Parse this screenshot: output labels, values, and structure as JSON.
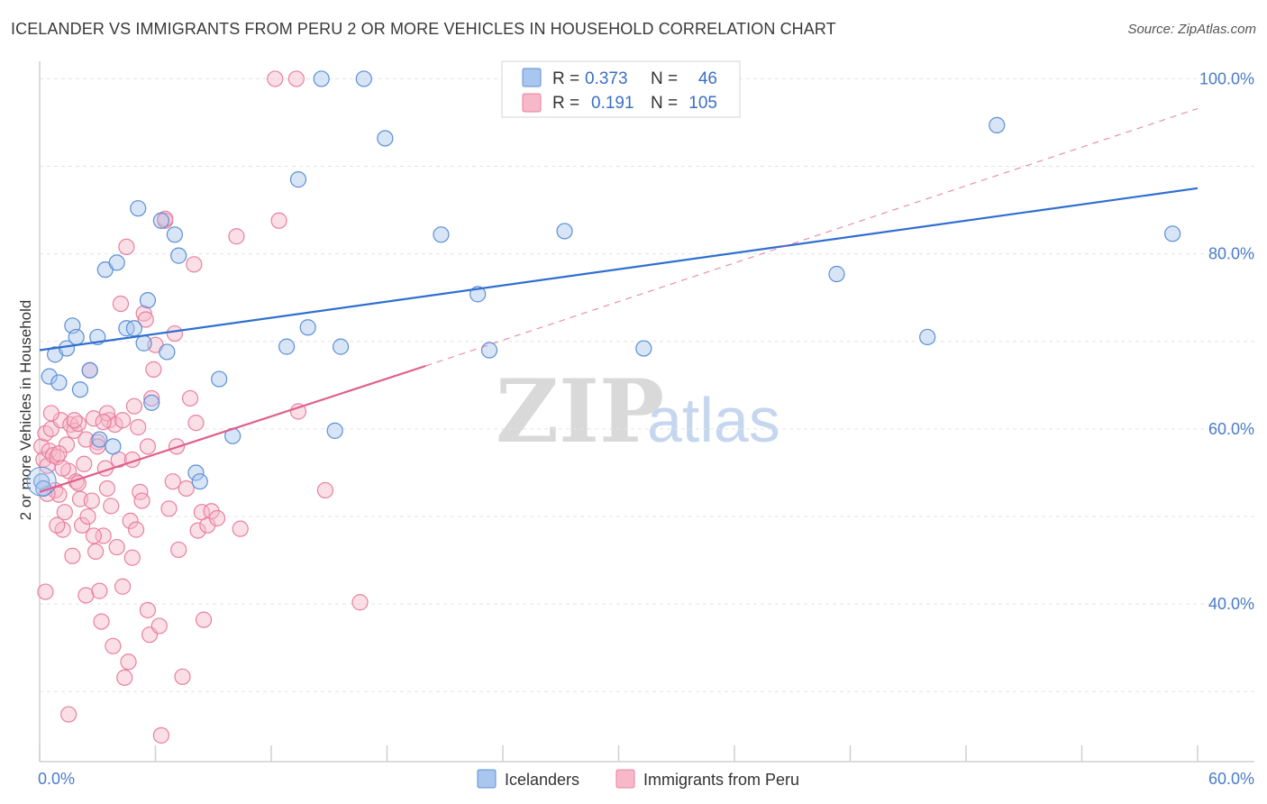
{
  "title": "ICELANDER VS IMMIGRANTS FROM PERU 2 OR MORE VEHICLES IN HOUSEHOLD CORRELATION CHART",
  "source": "Source: ZipAtlas.com",
  "watermark": {
    "zip": "ZIP",
    "atlas": "atlas"
  },
  "colors": {
    "blue_fill": "#a9c6ee",
    "blue_stroke": "#5b8fd6",
    "blue_line": "#2f6fd0",
    "pink_fill": "#f7b8ca",
    "pink_stroke": "#e8809f",
    "pink_line": "#e0608c",
    "tick_text": "#4a7cc9"
  },
  "legend": {
    "rows": [
      {
        "r_label": "R =",
        "r_value": "0.373",
        "n_label": "N =",
        "n_value": "46"
      },
      {
        "r_label": "R =",
        "r_value": "0.191",
        "n_label": "N =",
        "n_value": "105"
      }
    ]
  },
  "chart_data": {
    "type": "scatter",
    "title": "ICELANDER VS IMMIGRANTS FROM PERU 2 OR MORE VEHICLES IN HOUSEHOLD CORRELATION CHART",
    "xlabel": "",
    "ylabel": "2 or more Vehicles in Household",
    "xlim": [
      0,
      60
    ],
    "ylim": [
      22,
      102
    ],
    "x_tick_labels": [
      "0.0%",
      "60.0%"
    ],
    "y_ticks": [
      40,
      60,
      80,
      100
    ],
    "y_tick_labels": [
      "40.0%",
      "60.0%",
      "80.0%",
      "100.0%"
    ],
    "grid": true,
    "legend_position": "bottom-center",
    "series": [
      {
        "name": "Icelanders",
        "color": "#a9c6ee",
        "trend": {
          "x": [
            0,
            60
          ],
          "y": [
            69.0,
            87.5
          ],
          "style": "solid"
        },
        "points": [
          [
            0.1,
            54.0
          ],
          [
            0.5,
            66.0
          ],
          [
            0.8,
            68.5
          ],
          [
            1.0,
            65.3
          ],
          [
            1.4,
            69.2
          ],
          [
            1.7,
            71.8
          ],
          [
            1.9,
            70.5
          ],
          [
            2.1,
            64.5
          ],
          [
            2.6,
            66.7
          ],
          [
            3.0,
            70.5
          ],
          [
            3.1,
            58.8
          ],
          [
            3.4,
            78.2
          ],
          [
            3.8,
            58.0
          ],
          [
            4.0,
            79.0
          ],
          [
            4.5,
            71.5
          ],
          [
            4.9,
            71.5
          ],
          [
            5.1,
            85.2
          ],
          [
            5.4,
            69.8
          ],
          [
            5.6,
            74.7
          ],
          [
            5.8,
            63.0
          ],
          [
            6.3,
            83.8
          ],
          [
            6.6,
            68.8
          ],
          [
            7.0,
            82.2
          ],
          [
            7.2,
            79.8
          ],
          [
            8.1,
            55.0
          ],
          [
            8.3,
            54.0
          ],
          [
            9.3,
            65.7
          ],
          [
            10.0,
            59.2
          ],
          [
            12.8,
            69.4
          ],
          [
            13.4,
            88.5
          ],
          [
            13.9,
            71.6
          ],
          [
            14.6,
            100.0
          ],
          [
            15.3,
            59.8
          ],
          [
            15.6,
            69.4
          ],
          [
            16.8,
            100.0
          ],
          [
            17.9,
            93.2
          ],
          [
            20.8,
            82.2
          ],
          [
            22.7,
            75.4
          ],
          [
            23.3,
            69.0
          ],
          [
            27.2,
            82.6
          ],
          [
            31.3,
            69.2
          ],
          [
            41.3,
            77.7
          ],
          [
            46.0,
            70.5
          ],
          [
            49.6,
            94.7
          ],
          [
            58.7,
            82.3
          ],
          [
            0.2,
            53.2
          ]
        ]
      },
      {
        "name": "Immigrants from Peru",
        "color": "#f7b8ca",
        "trend": {
          "x": [
            0,
            20
          ],
          "y": [
            52.8,
            67.2
          ],
          "style": "solid",
          "extension": {
            "x": [
              20,
              60
            ],
            "y": [
              67.2,
              96.6
            ],
            "style": "dashed"
          }
        },
        "points": [
          [
            0.1,
            58.0
          ],
          [
            0.2,
            56.5
          ],
          [
            0.3,
            59.5
          ],
          [
            0.4,
            55.8
          ],
          [
            0.5,
            57.5
          ],
          [
            0.6,
            60.0
          ],
          [
            0.7,
            57.0
          ],
          [
            0.8,
            53.0
          ],
          [
            0.9,
            56.8
          ],
          [
            1.0,
            52.5
          ],
          [
            1.1,
            61.0
          ],
          [
            1.2,
            48.5
          ],
          [
            1.3,
            50.5
          ],
          [
            1.4,
            58.2
          ],
          [
            1.5,
            55.2
          ],
          [
            1.6,
            60.5
          ],
          [
            1.7,
            45.5
          ],
          [
            1.8,
            59.8
          ],
          [
            1.9,
            54.0
          ],
          [
            2.0,
            60.6
          ],
          [
            2.1,
            52.0
          ],
          [
            2.2,
            49.0
          ],
          [
            2.3,
            56.0
          ],
          [
            2.4,
            41.0
          ],
          [
            2.5,
            50.0
          ],
          [
            2.6,
            66.7
          ],
          [
            2.7,
            51.8
          ],
          [
            2.8,
            61.2
          ],
          [
            2.9,
            46.0
          ],
          [
            3.0,
            58.5
          ],
          [
            3.1,
            41.5
          ],
          [
            3.2,
            38.0
          ],
          [
            3.3,
            47.8
          ],
          [
            3.4,
            55.5
          ],
          [
            3.5,
            53.2
          ],
          [
            3.6,
            61.0
          ],
          [
            3.7,
            51.2
          ],
          [
            3.8,
            35.2
          ],
          [
            3.9,
            60.5
          ],
          [
            4.0,
            46.5
          ],
          [
            4.1,
            56.5
          ],
          [
            4.2,
            74.3
          ],
          [
            4.3,
            42.0
          ],
          [
            4.4,
            31.6
          ],
          [
            4.5,
            80.8
          ],
          [
            4.6,
            33.4
          ],
          [
            4.7,
            49.5
          ],
          [
            4.8,
            45.3
          ],
          [
            4.9,
            62.6
          ],
          [
            5.0,
            48.5
          ],
          [
            5.1,
            60.2
          ],
          [
            5.2,
            52.8
          ],
          [
            5.3,
            51.8
          ],
          [
            5.4,
            73.2
          ],
          [
            5.5,
            72.5
          ],
          [
            5.6,
            39.3
          ],
          [
            5.7,
            36.5
          ],
          [
            5.8,
            63.5
          ],
          [
            5.9,
            66.8
          ],
          [
            6.0,
            69.6
          ],
          [
            6.2,
            37.5
          ],
          [
            6.3,
            25.0
          ],
          [
            6.5,
            83.8
          ],
          [
            6.7,
            50.9
          ],
          [
            6.9,
            54.0
          ],
          [
            7.0,
            70.9
          ],
          [
            7.2,
            46.2
          ],
          [
            7.4,
            31.7
          ],
          [
            7.6,
            53.2
          ],
          [
            7.8,
            63.5
          ],
          [
            8.0,
            78.8
          ],
          [
            8.1,
            60.7
          ],
          [
            8.2,
            48.4
          ],
          [
            8.4,
            50.5
          ],
          [
            8.5,
            38.2
          ],
          [
            8.7,
            49.0
          ],
          [
            8.9,
            50.6
          ],
          [
            9.2,
            49.8
          ],
          [
            10.4,
            48.6
          ],
          [
            12.4,
            83.8
          ],
          [
            13.4,
            62.0
          ],
          [
            14.8,
            53.0
          ],
          [
            16.6,
            40.2
          ],
          [
            0.3,
            41.4
          ],
          [
            1.5,
            27.4
          ],
          [
            12.2,
            100.0
          ],
          [
            13.3,
            100.0
          ],
          [
            6.5,
            84.0
          ],
          [
            4.3,
            61.0
          ],
          [
            10.2,
            82.0
          ],
          [
            0.6,
            61.8
          ],
          [
            1.0,
            57.2
          ],
          [
            2.0,
            53.8
          ],
          [
            3.5,
            61.8
          ],
          [
            5.6,
            58.0
          ],
          [
            2.8,
            47.8
          ],
          [
            1.8,
            61.0
          ],
          [
            0.4,
            52.6
          ],
          [
            3.0,
            58.0
          ],
          [
            1.2,
            55.5
          ],
          [
            0.9,
            49.0
          ],
          [
            2.4,
            58.8
          ],
          [
            7.1,
            58.0
          ],
          [
            4.8,
            56.5
          ],
          [
            3.3,
            60.8
          ]
        ]
      }
    ]
  }
}
